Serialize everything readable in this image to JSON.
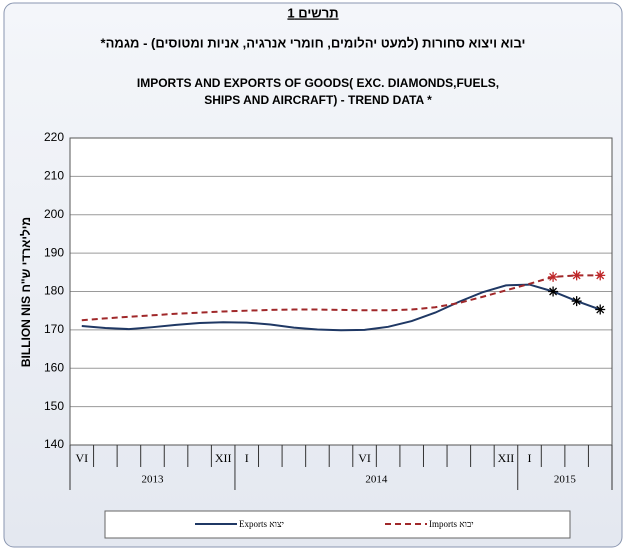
{
  "chart_data": {
    "type": "line",
    "title": "תרשים 1",
    "subtitle_he": "יבוא ויצוא סחורות (למעט יהלומים, חומרי אנרגיה, אניות ומטוסים) - מגמה*",
    "subtitle_en": [
      "IMPORTS AND EXPORTS OF GOODS( EXC. DIAMONDS,FUELS,",
      "SHIPS AND AIRCRAFT) - TREND DATA *"
    ],
    "y_label": "BILLION  NIS  מיליארדי ש\"ח",
    "categories": [
      "VI",
      null,
      null,
      null,
      null,
      null,
      "XII",
      "I",
      null,
      null,
      null,
      null,
      "VI",
      null,
      null,
      null,
      null,
      null,
      "XII",
      "I",
      null,
      null,
      null
    ],
    "years": [
      {
        "label": "2013",
        "from": 0
      },
      {
        "label": "2014",
        "from": 7
      },
      {
        "label": "2015",
        "from": 19
      }
    ],
    "series": [
      {
        "name": "Exports יצוא",
        "color": "#1f3864",
        "dash": false,
        "marker_color": "#000000",
        "values": [
          171,
          170.5,
          170.2,
          170.7,
          171.3,
          171.8,
          172,
          171.9,
          171.4,
          170.6,
          170.1,
          169.9,
          170,
          170.8,
          172.3,
          174.5,
          177.3,
          179.8,
          181.6,
          181.8,
          180,
          177.5,
          175.3
        ]
      },
      {
        "name": "Imports יבוא",
        "color": "#a0282a",
        "dash": true,
        "marker_color": "#c0282a",
        "values": [
          172.5,
          173,
          173.4,
          173.8,
          174.2,
          174.5,
          174.8,
          175,
          175.2,
          175.3,
          175.3,
          175.2,
          175.1,
          175.1,
          175.3,
          175.9,
          177,
          178.6,
          180.3,
          182,
          183.8,
          184.2,
          184.2
        ]
      }
    ],
    "ylim": [
      140,
      220
    ],
    "yticks": [
      140,
      150,
      160,
      170,
      180,
      190,
      200,
      210,
      220
    ],
    "grid": true
  }
}
